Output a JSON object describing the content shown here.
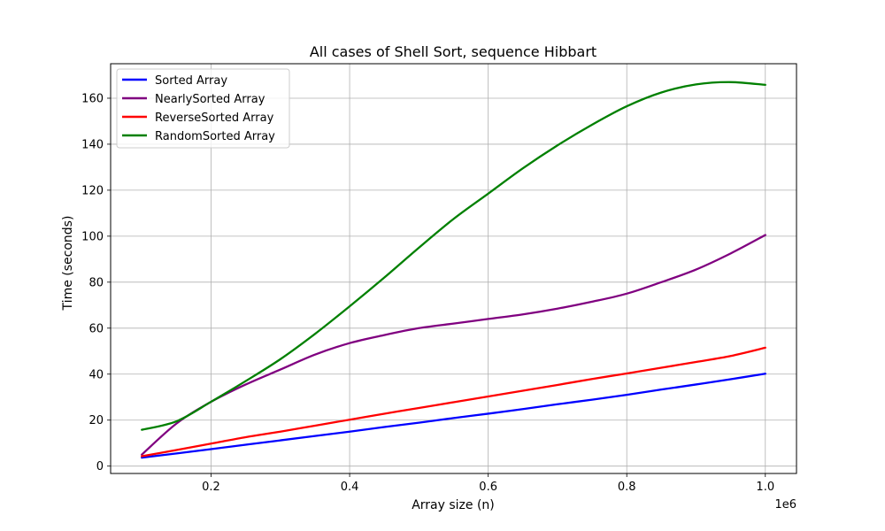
{
  "chart_data": {
    "type": "line",
    "title": "All cases of Shell Sort, sequence Hibbart",
    "xlabel": "Array size (n)",
    "ylabel": "Time (seconds)",
    "x_offset_label": "1e6",
    "xlim": [
      55000,
      1045000
    ],
    "ylim": [
      -3.2,
      175
    ],
    "x_ticks": [
      200000,
      400000,
      600000,
      800000,
      1000000
    ],
    "x_tick_labels": [
      "0.2",
      "0.4",
      "0.6",
      "0.8",
      "1.0"
    ],
    "y_ticks": [
      0,
      20,
      40,
      60,
      80,
      100,
      120,
      140,
      160
    ],
    "y_tick_labels": [
      "0",
      "20",
      "40",
      "60",
      "80",
      "100",
      "120",
      "140",
      "160"
    ],
    "grid": true,
    "legend_position": "top-left",
    "x": [
      100000,
      150000,
      200000,
      250000,
      300000,
      350000,
      400000,
      450000,
      500000,
      550000,
      600000,
      650000,
      700000,
      750000,
      800000,
      850000,
      900000,
      950000,
      1000000
    ],
    "series": [
      {
        "name": "Sorted Array",
        "color": "#0000ff",
        "values": [
          3.7,
          5.5,
          7.4,
          9.3,
          11.2,
          13.1,
          15.0,
          17.0,
          18.9,
          20.9,
          22.8,
          24.8,
          26.9,
          28.9,
          31.0,
          33.3,
          35.5,
          37.8,
          40.2
        ]
      },
      {
        "name": "NearlySorted Array",
        "color": "#800080",
        "values": [
          5.0,
          18.5,
          28.0,
          35.5,
          42.0,
          48.5,
          53.5,
          57.0,
          60.0,
          62.0,
          64.0,
          66.0,
          68.5,
          71.5,
          75.0,
          80.0,
          85.5,
          92.5,
          100.5
        ]
      },
      {
        "name": "ReverseSorted Array",
        "color": "#ff0000",
        "values": [
          4.3,
          7.0,
          9.8,
          12.6,
          15.0,
          17.6,
          20.2,
          22.8,
          25.3,
          27.8,
          30.3,
          32.8,
          35.3,
          37.9,
          40.3,
          42.8,
          45.3,
          47.9,
          51.5
        ]
      },
      {
        "name": "RandomSorted Array",
        "color": "#008000",
        "values": [
          15.8,
          19.5,
          28.0,
          37.0,
          46.5,
          57.5,
          69.5,
          82.0,
          95.0,
          107.5,
          118.5,
          129.5,
          139.5,
          148.5,
          156.5,
          162.5,
          166.0,
          167.0,
          165.8
        ]
      }
    ]
  }
}
